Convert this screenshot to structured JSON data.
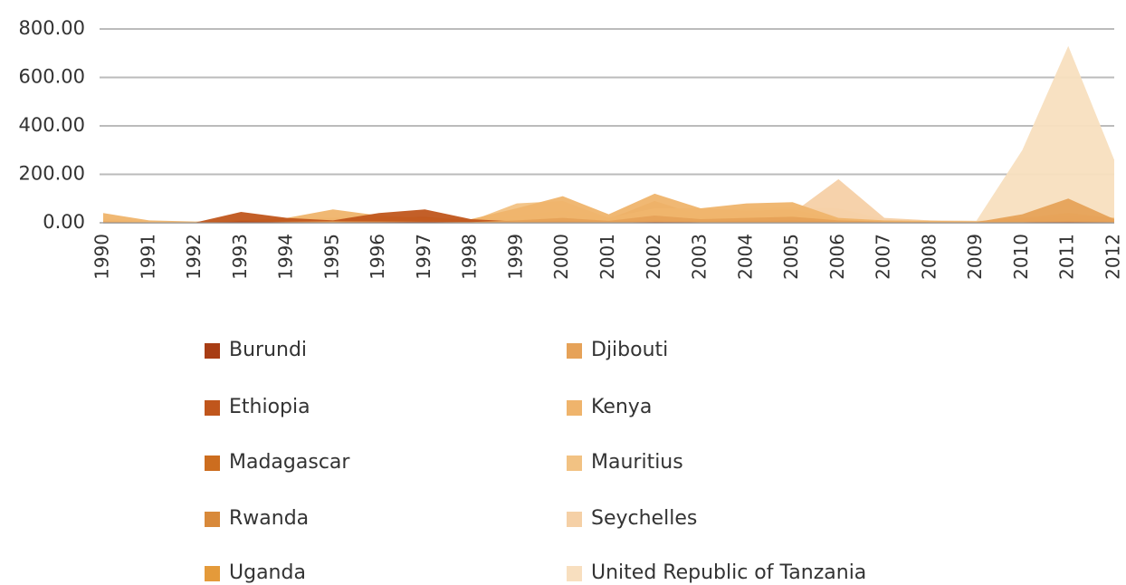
{
  "chart_data": {
    "type": "area",
    "categories": [
      "1990",
      "1991",
      "1992",
      "1993",
      "1994",
      "1995",
      "1996",
      "1997",
      "1998",
      "1999",
      "2000",
      "2001",
      "2002",
      "2003",
      "2004",
      "2005",
      "2006",
      "2007",
      "2008",
      "2009",
      "2010",
      "2011",
      "2012"
    ],
    "series": [
      {
        "name": "Burundi",
        "color": "#a83d14",
        "values": [
          0,
          0,
          0,
          5,
          3,
          2,
          3,
          4,
          2,
          1,
          2,
          1,
          3,
          2,
          2,
          2,
          1,
          1,
          1,
          1,
          2,
          3,
          2
        ]
      },
      {
        "name": "Djibouti",
        "color": "#e6a258",
        "values": [
          5,
          2,
          1,
          3,
          4,
          6,
          5,
          4,
          3,
          10,
          20,
          8,
          30,
          15,
          20,
          25,
          10,
          5,
          3,
          3,
          35,
          100,
          15
        ]
      },
      {
        "name": "Ethiopia",
        "color": "#c0561c",
        "values": [
          2,
          1,
          1,
          45,
          20,
          10,
          40,
          55,
          15,
          5,
          8,
          5,
          10,
          6,
          8,
          10,
          5,
          3,
          2,
          2,
          5,
          8,
          5
        ]
      },
      {
        "name": "Kenya",
        "color": "#efb46c",
        "values": [
          40,
          10,
          5,
          10,
          20,
          55,
          30,
          20,
          15,
          60,
          110,
          35,
          120,
          60,
          80,
          85,
          20,
          10,
          8,
          6,
          20,
          40,
          20
        ]
      },
      {
        "name": "Madagascar",
        "color": "#cc6d1f",
        "values": [
          3,
          1,
          1,
          5,
          8,
          4,
          6,
          8,
          5,
          3,
          4,
          3,
          5,
          4,
          4,
          5,
          3,
          2,
          2,
          2,
          3,
          5,
          3
        ]
      },
      {
        "name": "Mauritius",
        "color": "#f2c283",
        "values": [
          10,
          3,
          2,
          5,
          10,
          20,
          15,
          10,
          8,
          80,
          90,
          20,
          60,
          60,
          50,
          55,
          15,
          8,
          5,
          4,
          10,
          20,
          10
        ]
      },
      {
        "name": "Rwanda",
        "color": "#d8893a",
        "values": [
          5,
          2,
          1,
          10,
          15,
          10,
          20,
          25,
          8,
          15,
          25,
          15,
          90,
          30,
          25,
          30,
          10,
          5,
          4,
          3,
          10,
          20,
          8
        ]
      },
      {
        "name": "Seychelles",
        "color": "#f5d0a6",
        "values": [
          15,
          5,
          3,
          8,
          10,
          15,
          10,
          10,
          8,
          20,
          30,
          15,
          40,
          30,
          35,
          40,
          180,
          20,
          10,
          8,
          15,
          30,
          20
        ]
      },
      {
        "name": "Uganda",
        "color": "#e49a3a",
        "values": [
          8,
          3,
          2,
          6,
          8,
          10,
          12,
          10,
          6,
          30,
          50,
          20,
          40,
          25,
          30,
          40,
          15,
          6,
          4,
          3,
          12,
          25,
          10
        ]
      },
      {
        "name": "United Republic of Tanzania",
        "color": "#f8dfbf",
        "values": [
          20,
          5,
          3,
          10,
          15,
          25,
          20,
          15,
          10,
          40,
          60,
          25,
          70,
          50,
          60,
          65,
          60,
          15,
          10,
          8,
          300,
          730,
          260
        ]
      }
    ],
    "ylim": [
      0,
      800
    ],
    "yticks": [
      {
        "value": 0,
        "label": "0.00"
      },
      {
        "value": 200,
        "label": "200.00"
      },
      {
        "value": 400,
        "label": "400.00"
      },
      {
        "value": 600,
        "label": "600.00"
      },
      {
        "value": 800,
        "label": "800.00"
      }
    ],
    "grid": true
  }
}
